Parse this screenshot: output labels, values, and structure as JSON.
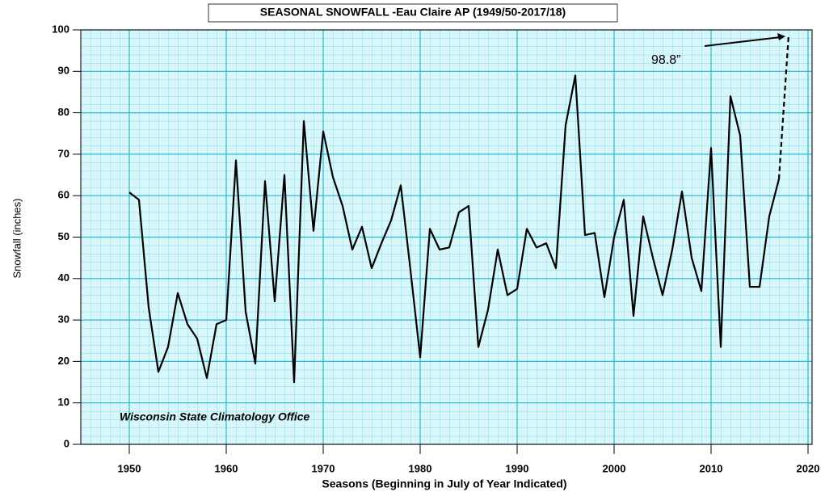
{
  "chart_data": {
    "type": "line",
    "title": "SEASONAL SNOWFALL -Eau Claire AP  (1949/50-2017/18)",
    "y_label": "Snowfall (inches)",
    "x_label": "Seasons (Beginning in July of Year Indicated)",
    "annotations": [
      {
        "text": "98.8”"
      },
      {
        "text": "Wisconsin State Climatology Office"
      }
    ],
    "xlim": [
      1945,
      2020
    ],
    "xticks": [
      1950,
      1960,
      1970,
      1980,
      1990,
      2000,
      2010,
      2020
    ],
    "ylim": [
      0,
      100
    ],
    "yticks": [
      0,
      10,
      20,
      30,
      40,
      50,
      60,
      70,
      80,
      90,
      100
    ],
    "grid": true,
    "series": [
      {
        "color": "#000000",
        "dashed": false,
        "x": [
          1950,
          1951,
          1952,
          1953,
          1954,
          1955,
          1956,
          1957,
          1958,
          1959,
          1960,
          1961,
          1962,
          1963,
          1964,
          1965,
          1966,
          1967,
          1968,
          1969,
          1970,
          1971,
          1972,
          1973,
          1974,
          1975,
          1976,
          1977,
          1978,
          1979,
          1980,
          1981,
          1982,
          1983,
          1984,
          1985,
          1986,
          1987,
          1988,
          1989,
          1990,
          1991,
          1992,
          1993,
          1994,
          1995,
          1996,
          1997,
          1998,
          1999,
          2000,
          2001,
          2002,
          2003,
          2004,
          2005,
          2006,
          2007,
          2008,
          2009,
          2010,
          2011,
          2012,
          2013,
          2014,
          2015,
          2016,
          2017
        ],
        "values": [
          60.8,
          59,
          33,
          17.5,
          23.5,
          36.5,
          29,
          25.5,
          16,
          29,
          30,
          68.5,
          32,
          19.5,
          63.5,
          34.5,
          65,
          15,
          78,
          51.5,
          75.5,
          64.5,
          57.5,
          47,
          52.5,
          42.5,
          48.5,
          54,
          62.5,
          42,
          21,
          52,
          47,
          47.5,
          56,
          57.5,
          23.5,
          32.5,
          47,
          36,
          37.5,
          52,
          47.5,
          48.5,
          42.5,
          77,
          89,
          50.5,
          51,
          35.5,
          50,
          59,
          31,
          55,
          45,
          36,
          47,
          61,
          45,
          37,
          71.5,
          23.5,
          84,
          74.5,
          38,
          38,
          55,
          64
        ]
      },
      {
        "color": "#000000",
        "dashed": true,
        "x": [
          2017,
          2018
        ],
        "values": [
          64,
          98.8
        ]
      }
    ]
  }
}
